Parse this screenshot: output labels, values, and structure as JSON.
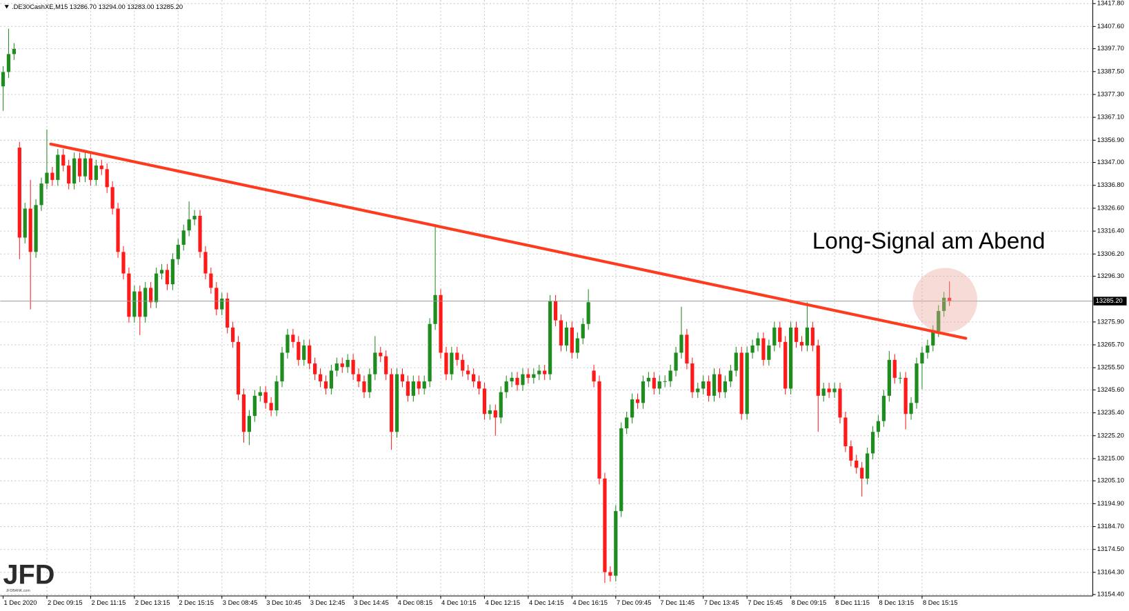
{
  "chart_data": {
    "type": "candlestick",
    "header": ".DE30CashXE,M15  13286.70 13294.00 13283.00 13285.20",
    "annotation": "Long-Signal am Abend",
    "logo": "JFD",
    "logo_sub": "JFDBANK.com",
    "up_color": "#1e8c1e",
    "down_color": "#ff1a1a",
    "grid": true,
    "ylim": [
      13153.8,
      13419.4
    ],
    "yticks": [
      {
        "value": 13417.8,
        "label": "13417.80"
      },
      {
        "value": 13407.6,
        "label": "13407.60"
      },
      {
        "value": 13397.7,
        "label": "13397.70"
      },
      {
        "value": 13387.5,
        "label": "13387.50"
      },
      {
        "value": 13377.3,
        "label": "13377.30"
      },
      {
        "value": 13367.1,
        "label": "13367.10"
      },
      {
        "value": 13356.9,
        "label": "13356.90"
      },
      {
        "value": 13347.0,
        "label": "13347.00"
      },
      {
        "value": 13336.8,
        "label": "13336.80"
      },
      {
        "value": 13326.6,
        "label": "13326.60"
      },
      {
        "value": 13316.4,
        "label": "13316.40"
      },
      {
        "value": 13306.2,
        "label": "13306.20"
      },
      {
        "value": 13296.3,
        "label": "13296.30"
      },
      {
        "value": 13275.9,
        "label": "13275.90"
      },
      {
        "value": 13265.7,
        "label": "13265.70"
      },
      {
        "value": 13255.5,
        "label": "13255.50"
      },
      {
        "value": 13245.6,
        "label": "13245.60"
      },
      {
        "value": 13235.4,
        "label": "13235.40"
      },
      {
        "value": 13225.2,
        "label": "13225.20"
      },
      {
        "value": 13215.0,
        "label": "13215.00"
      },
      {
        "value": 13205.1,
        "label": "13205.10"
      },
      {
        "value": 13194.9,
        "label": "13194.90"
      },
      {
        "value": 13184.7,
        "label": "13184.70"
      },
      {
        "value": 13174.5,
        "label": "13174.50"
      },
      {
        "value": 13164.3,
        "label": "13164.30"
      },
      {
        "value": 13154.4,
        "label": "13154.40"
      }
    ],
    "current_price": {
      "value": 13285.2,
      "label": "13285.20"
    },
    "trendline": {
      "x": [
        8.7,
        176
      ],
      "y": [
        13355.2,
        13268.6
      ],
      "color": "#ff3b1f"
    },
    "highlight": {
      "x": 172.2,
      "y": 13285.6,
      "radius": 14.4,
      "color": "#eaa59c"
    },
    "categories": [
      "1 Dec 2020",
      null,
      null,
      null,
      null,
      null,
      null,
      null,
      "2 Dec 09:15",
      null,
      null,
      null,
      null,
      null,
      null,
      null,
      "2 Dec 11:15",
      null,
      null,
      null,
      null,
      null,
      null,
      null,
      "2 Dec 13:15",
      null,
      null,
      null,
      null,
      null,
      null,
      null,
      "2 Dec 15:15",
      null,
      null,
      null,
      null,
      null,
      null,
      null,
      "3 Dec 08:45",
      null,
      null,
      null,
      null,
      null,
      null,
      null,
      "3 Dec 10:45",
      null,
      null,
      null,
      null,
      null,
      null,
      null,
      "3 Dec 12:45",
      null,
      null,
      null,
      null,
      null,
      null,
      null,
      "3 Dec 14:45",
      null,
      null,
      null,
      null,
      null,
      null,
      null,
      "4 Dec 08:15",
      null,
      null,
      null,
      null,
      null,
      null,
      null,
      "4 Dec 10:15",
      null,
      null,
      null,
      null,
      null,
      null,
      null,
      "4 Dec 12:15",
      null,
      null,
      null,
      null,
      null,
      null,
      null,
      "4 Dec 14:15",
      null,
      null,
      null,
      null,
      null,
      null,
      null,
      "4 Dec 16:15",
      null,
      null,
      null,
      null,
      null,
      null,
      null,
      "7 Dec 09:45",
      null,
      null,
      null,
      null,
      null,
      null,
      null,
      "7 Dec 11:45",
      null,
      null,
      null,
      null,
      null,
      null,
      null,
      "7 Dec 13:45",
      null,
      null,
      null,
      null,
      null,
      null,
      null,
      "7 Dec 15:45",
      null,
      null,
      null,
      null,
      null,
      null,
      null,
      "8 Dec 09:15",
      null,
      null,
      null,
      null,
      null,
      null,
      null,
      "8 Dec 11:15",
      null,
      null,
      null,
      null,
      null,
      null,
      null,
      "8 Dec 13:15",
      null,
      null,
      null,
      null,
      null,
      null,
      null,
      "8 Dec 15:15",
      null,
      null,
      null,
      null,
      null
    ],
    "open": [
      13380.9,
      13387.3,
      13395.3,
      13353.6,
      13313.5,
      13326.4,
      13307.1,
      13328.0,
      13337.6,
      13342.4,
      13339.2,
      13350.4,
      13345.6,
      13337.6,
      13348.8,
      13340.8,
      13348.8,
      13339.2,
      13345.6,
      13344.0,
      13336.0,
      13326.4,
      13307.1,
      13297.5,
      13278.2,
      13289.5,
      13278.2,
      13291.1,
      13284.7,
      13297.5,
      13299.1,
      13292.7,
      13303.9,
      13310.3,
      13316.7,
      13321.6,
      13323.2,
      13307.1,
      13297.5,
      13291.1,
      13281.5,
      13286.3,
      13273.4,
      13267.0,
      13243.6,
      13226.9,
      13234.0,
      13243.0,
      13244.6,
      13239.8,
      13236.5,
      13249.4,
      13262.2,
      13270.2,
      13267.0,
      13259.0,
      13265.4,
      13257.4,
      13252.6,
      13249.4,
      13246.2,
      13254.2,
      13257.4,
      13255.8,
      13259.0,
      13252.6,
      13249.4,
      13244.6,
      13252.6,
      13262.2,
      13260.6,
      13252.6,
      13226.9,
      13252.6,
      13249.4,
      13243.0,
      13249.4,
      13246.2,
      13249.4,
      13275.0,
      13287.9,
      13262.2,
      13252.6,
      13262.2,
      13259.0,
      13254.2,
      13252.6,
      13249.4,
      13246.2,
      13234.9,
      13236.5,
      13233.3,
      13244.6,
      13249.4,
      13251.0,
      13247.8,
      13252.6,
      13251.0,
      13252.6,
      13254.2,
      13252.6,
      13285.3,
      13276.6,
      13265.4,
      13273.4,
      13262.2,
      13268.6,
      13275.0,
      13254.2,
      13249.4,
      13206.1,
      13164.4,
      13162.8,
      13191.6,
      13228.5,
      13233.3,
      13241.4,
      13239.8,
      13249.4,
      13251.0,
      13246.2,
      13249.4,
      13249.5,
      13254.2,
      13262.2,
      13270.2,
      13257.4,
      13244.6,
      13246.2,
      13249.4,
      13243.0,
      13252.6,
      13244.6,
      13249.4,
      13254.2,
      13262.2,
      13234.9,
      13262.2,
      13265.4,
      13268.6,
      13259.0,
      13265.4,
      13273.4,
      13267.0,
      13246.2,
      13273.4,
      13267.0,
      13265.4,
      13273.4,
      13265.4,
      13243.0,
      13246.2,
      13244.6,
      13246.2,
      13233.3,
      13220.5,
      13214.1,
      13210.9,
      13206.1,
      13217.3,
      13226.9,
      13231.7,
      13243.0,
      13259.0,
      13251.0,
      13251.0,
      13234.9,
      13239.8,
      13257.4,
      13262.2,
      13265.4,
      13271.8,
      13280.8,
      13286.7
    ],
    "high": [
      13389.9,
      13406.6,
      13400.2,
      13356.2,
      13329.0,
      13339.2,
      13330.6,
      13340.2,
      13361.7,
      13345.0,
      13353.0,
      13353.0,
      13348.2,
      13351.4,
      13351.4,
      13351.4,
      13351.4,
      13348.2,
      13348.2,
      13346.6,
      13338.6,
      13329.0,
      13309.7,
      13300.1,
      13292.1,
      13292.1,
      13293.7,
      13293.7,
      13300.1,
      13301.7,
      13301.7,
      13306.5,
      13312.9,
      13319.3,
      13329.6,
      13325.8,
      13325.8,
      13309.7,
      13300.1,
      13293.7,
      13288.9,
      13288.9,
      13276.0,
      13269.6,
      13246.2,
      13236.6,
      13245.6,
      13247.2,
      13247.2,
      13242.4,
      13252.0,
      13264.8,
      13272.8,
      13272.8,
      13269.6,
      13268.0,
      13268.0,
      13260.0,
      13255.2,
      13252.0,
      13256.8,
      13260.0,
      13260.0,
      13261.6,
      13261.6,
      13255.2,
      13252.0,
      13255.2,
      13269.6,
      13264.8,
      13263.2,
      13255.2,
      13255.2,
      13255.2,
      13252.0,
      13252.0,
      13252.0,
      13252.0,
      13277.6,
      13318.4,
      13290.5,
      13264.8,
      13264.8,
      13264.8,
      13261.6,
      13256.8,
      13255.2,
      13252.0,
      13248.8,
      13239.1,
      13239.1,
      13247.2,
      13252.0,
      13253.6,
      13253.6,
      13255.2,
      13255.2,
      13255.2,
      13256.8,
      13256.8,
      13287.9,
      13287.9,
      13279.2,
      13276.0,
      13276.0,
      13271.2,
      13277.6,
      13290.5,
      13256.8,
      13252.0,
      13208.7,
      13167.0,
      13194.2,
      13231.1,
      13235.9,
      13244.0,
      13244.0,
      13252.0,
      13253.6,
      13253.6,
      13252.0,
      13252.1,
      13256.8,
      13264.8,
      13282.7,
      13272.8,
      13260.0,
      13248.8,
      13252.0,
      13252.0,
      13255.2,
      13255.2,
      13252.0,
      13256.8,
      13264.8,
      13264.8,
      13264.8,
      13268.0,
      13271.2,
      13271.2,
      13268.0,
      13276.0,
      13276.0,
      13269.6,
      13276.0,
      13276.0,
      13269.6,
      13284.7,
      13276.0,
      13268.0,
      13248.8,
      13248.8,
      13248.8,
      13248.8,
      13235.9,
      13223.1,
      13216.7,
      13213.5,
      13219.9,
      13229.5,
      13234.3,
      13245.6,
      13263.0,
      13261.6,
      13253.6,
      13253.6,
      13242.4,
      13260.0,
      13264.8,
      13268.0,
      13274.4,
      13283.4,
      13289.3,
      13294.0
    ],
    "low": [
      13370.0,
      13384.7,
      13392.7,
      13303.9,
      13310.9,
      13281.5,
      13304.5,
      13325.4,
      13335.0,
      13336.6,
      13336.6,
      13343.0,
      13335.0,
      13335.0,
      13338.2,
      13338.2,
      13336.6,
      13336.6,
      13341.4,
      13333.4,
      13323.8,
      13304.5,
      13294.9,
      13275.6,
      13275.6,
      13270.0,
      13275.6,
      13282.1,
      13282.1,
      13294.9,
      13290.1,
      13290.1,
      13301.3,
      13307.7,
      13314.1,
      13319.0,
      13304.5,
      13294.9,
      13288.5,
      13278.9,
      13278.9,
      13270.8,
      13264.4,
      13241.0,
      13222.1,
      13221.0,
      13231.4,
      13240.4,
      13237.2,
      13233.9,
      13233.9,
      13246.8,
      13259.6,
      13264.4,
      13256.4,
      13256.4,
      13254.8,
      13250.0,
      13246.8,
      13243.6,
      13243.6,
      13251.6,
      13253.2,
      13253.2,
      13250.0,
      13246.8,
      13242.0,
      13242.0,
      13250.0,
      13258.0,
      13250.0,
      13218.9,
      13224.3,
      13246.8,
      13240.4,
      13240.4,
      13243.6,
      13243.6,
      13246.8,
      13272.4,
      13259.6,
      13250.0,
      13250.0,
      13256.4,
      13251.6,
      13250.0,
      13246.8,
      13243.6,
      13232.3,
      13232.3,
      13225.2,
      13230.7,
      13242.0,
      13246.8,
      13245.2,
      13245.2,
      13248.4,
      13248.4,
      13250.0,
      13250.0,
      13250.0,
      13274.0,
      13262.8,
      13262.8,
      13259.6,
      13259.6,
      13266.0,
      13272.4,
      13246.8,
      13203.5,
      13159.6,
      13160.2,
      13160.2,
      13189.0,
      13225.9,
      13230.7,
      13237.2,
      13237.2,
      13246.8,
      13243.6,
      13243.6,
      13246.8,
      13246.9,
      13251.6,
      13259.6,
      13254.8,
      13242.0,
      13242.0,
      13243.6,
      13240.4,
      13240.4,
      13242.0,
      13242.0,
      13246.8,
      13251.6,
      13232.3,
      13232.3,
      13259.6,
      13262.8,
      13256.4,
      13256.4,
      13262.8,
      13264.4,
      13243.6,
      13243.6,
      13264.4,
      13262.8,
      13262.8,
      13262.8,
      13227.0,
      13240.4,
      13242.0,
      13242.0,
      13230.7,
      13217.9,
      13211.5,
      13208.3,
      13198.1,
      13203.5,
      13214.7,
      13224.3,
      13229.1,
      13240.4,
      13248.4,
      13248.4,
      13228.0,
      13232.3,
      13237.2,
      13246.0,
      13259.6,
      13262.8,
      13269.2,
      13278.2,
      13283.0
    ],
    "close": [
      13387.3,
      13395.3,
      13397.6,
      13313.5,
      13326.4,
      13307.1,
      13328.0,
      13337.6,
      13342.4,
      13339.2,
      13350.4,
      13345.6,
      13337.6,
      13348.8,
      13340.8,
      13348.8,
      13339.2,
      13345.6,
      13344.0,
      13336.0,
      13326.4,
      13307.1,
      13297.5,
      13278.2,
      13289.5,
      13278.2,
      13291.1,
      13284.7,
      13297.5,
      13299.1,
      13292.7,
      13303.9,
      13310.3,
      13316.7,
      13321.6,
      13323.2,
      13307.1,
      13297.5,
      13291.1,
      13281.5,
      13286.3,
      13273.4,
      13267.0,
      13243.6,
      13226.9,
      13234.0,
      13243.0,
      13244.6,
      13239.8,
      13236.5,
      13249.4,
      13262.2,
      13270.2,
      13267.0,
      13259.0,
      13265.4,
      13257.4,
      13252.6,
      13249.4,
      13246.2,
      13254.2,
      13257.4,
      13255.8,
      13259.0,
      13252.6,
      13249.4,
      13244.6,
      13252.6,
      13262.2,
      13260.6,
      13252.6,
      13226.9,
      13252.6,
      13249.4,
      13243.0,
      13249.4,
      13246.2,
      13249.4,
      13275.0,
      13287.9,
      13262.2,
      13252.6,
      13262.2,
      13259.0,
      13254.2,
      13252.6,
      13249.4,
      13246.2,
      13234.9,
      13236.5,
      13233.3,
      13244.6,
      13249.4,
      13251.0,
      13247.8,
      13252.6,
      13251.0,
      13252.6,
      13254.2,
      13252.6,
      13285.3,
      13276.6,
      13265.4,
      13273.4,
      13262.2,
      13268.6,
      13275.0,
      13284.7,
      13249.4,
      13206.1,
      13164.4,
      13162.8,
      13191.6,
      13228.5,
      13233.3,
      13241.4,
      13239.8,
      13249.4,
      13251.0,
      13246.2,
      13249.4,
      13249.5,
      13254.2,
      13262.2,
      13270.2,
      13257.4,
      13244.6,
      13246.2,
      13249.4,
      13243.0,
      13252.6,
      13244.6,
      13249.4,
      13254.2,
      13262.2,
      13234.9,
      13262.2,
      13265.4,
      13268.6,
      13259.0,
      13265.4,
      13273.4,
      13267.0,
      13246.2,
      13273.4,
      13267.0,
      13265.4,
      13273.4,
      13265.4,
      13243.0,
      13246.2,
      13244.6,
      13246.2,
      13233.3,
      13220.5,
      13214.1,
      13210.9,
      13206.1,
      13217.3,
      13226.9,
      13231.7,
      13243.0,
      13259.0,
      13251.0,
      13251.0,
      13234.9,
      13239.8,
      13257.4,
      13262.2,
      13265.4,
      13271.8,
      13280.8,
      13286.7,
      13285.2
    ]
  }
}
